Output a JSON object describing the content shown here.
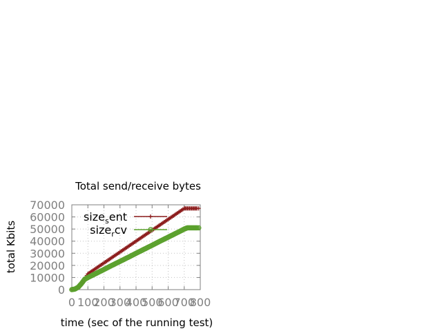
{
  "chart_data": {
    "type": "line",
    "title": "Total send/receive bytes",
    "xlabel": "time (sec of the running test)",
    "ylabel": "total Kbits",
    "xlim": [
      0,
      800
    ],
    "ylim": [
      0,
      70000
    ],
    "x_ticks": [
      "0",
      "100",
      "200",
      "300",
      "400",
      "500",
      "600",
      "700",
      "800"
    ],
    "y_ticks": [
      "0",
      "10000",
      "20000",
      "30000",
      "40000",
      "50000",
      "60000",
      "70000"
    ],
    "grid": true,
    "legend_position": "top-left",
    "series": [
      {
        "name": "size_sent",
        "legend_base": "size",
        "legend_sub": "s",
        "legend_rest": "ent",
        "color": "#8b1a1a",
        "marker": "plus",
        "x": [
          0,
          20,
          40,
          60,
          80,
          100,
          150,
          200,
          250,
          300,
          350,
          400,
          450,
          500,
          550,
          600,
          650,
          700,
          720,
          740,
          760,
          780,
          790
        ],
        "y": [
          0,
          500,
          2000,
          5000,
          9000,
          13000,
          17500,
          22000,
          26500,
          31000,
          35500,
          40000,
          44500,
          49000,
          53500,
          58000,
          62500,
          67000,
          67000,
          67000,
          67000,
          67000,
          67000
        ]
      },
      {
        "name": "size_rcv",
        "legend_base": "size",
        "legend_sub": "r",
        "legend_rest": "cv",
        "color": "#5aa02c",
        "marker": "circle",
        "x": [
          0,
          20,
          40,
          60,
          80,
          100,
          150,
          200,
          250,
          300,
          350,
          400,
          450,
          500,
          550,
          600,
          650,
          700,
          720,
          740,
          760,
          780,
          790
        ],
        "y": [
          0,
          500,
          2000,
          5000,
          8500,
          10000,
          13300,
          16600,
          20000,
          23300,
          26600,
          30000,
          33300,
          36600,
          40000,
          43300,
          46600,
          50000,
          51000,
          51000,
          51000,
          51000,
          51000
        ]
      }
    ]
  }
}
